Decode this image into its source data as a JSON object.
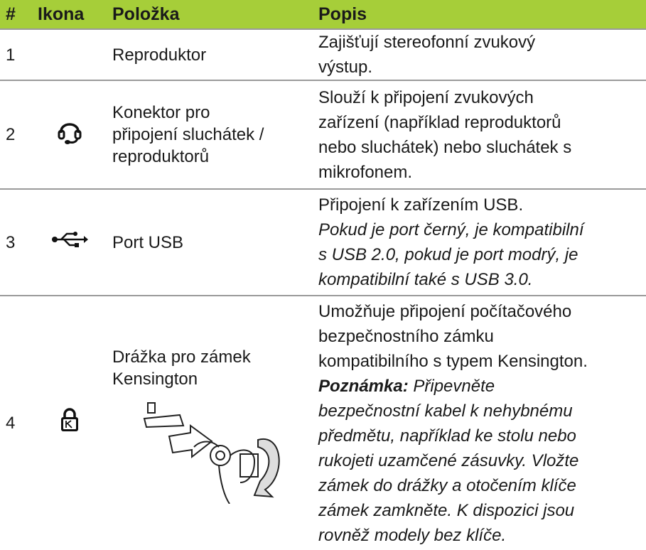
{
  "table": {
    "header": [
      "#",
      "Ikona",
      "Položka",
      "Popis"
    ],
    "rows": [
      {
        "number": "1",
        "item": [
          "Reproduktor"
        ],
        "description": {
          "text": [
            "Zajišťují stereofonní zvukový",
            "výstup."
          ]
        }
      },
      {
        "number": "2",
        "item": [
          "Konektor pro",
          "připojení sluchátek /",
          "reproduktorů"
        ],
        "description": {
          "text": [
            "Slouží k připojení zvukových",
            "zařízení (například reproduktorů",
            "nebo sluchátek) nebo sluchátek s",
            "mikrofonem."
          ]
        }
      },
      {
        "number": "3",
        "item": [
          "Port USB"
        ],
        "description": {
          "text": [
            "Připojení k zařízením USB."
          ],
          "italic": [
            "Pokud je port černý, je kompatibilní",
            "s USB 2.0, pokud je port modrý, je",
            "kompatibilní také s USB 3.0."
          ]
        }
      },
      {
        "number": "4",
        "item": [
          "Drážka pro zámek",
          "Kensington"
        ],
        "description": {
          "text": [
            "Umožňuje připojení počítačového",
            "bezpečnostního zámku",
            "kompatibilního s typem Kensington."
          ],
          "note_label": "Poznámka:",
          "italic": [
            "Připevněte",
            "bezpečnostní kabel k nehybnému",
            "předmětu, například ke stolu nebo",
            "rukojeti uzamčené zásuvky. Vložte",
            "zámek do drážky a otočením klíče",
            "zámek zamkněte. K dispozici jsou",
            "rovněž modely bez klíče."
          ]
        }
      }
    ]
  }
}
